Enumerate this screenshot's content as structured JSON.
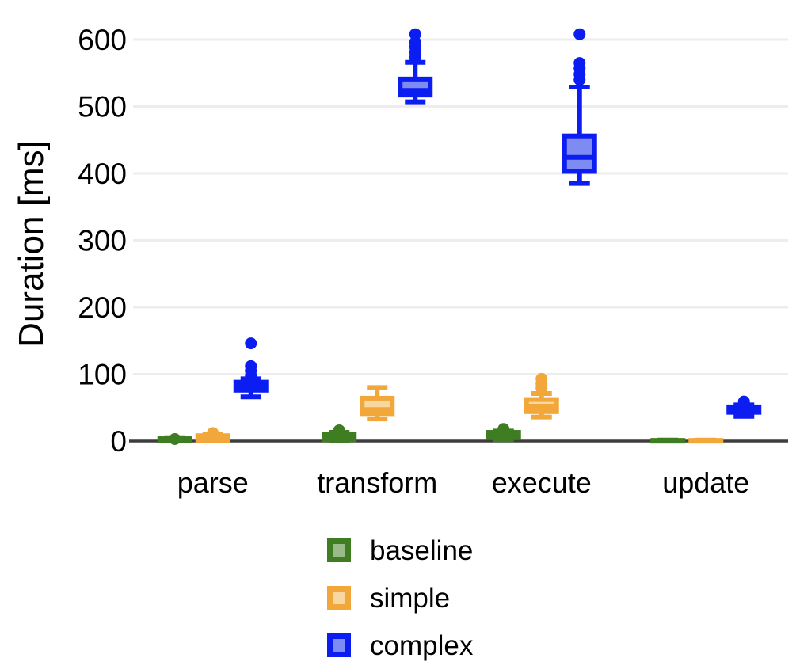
{
  "chart_data": {
    "type": "boxplot",
    "title": "",
    "ylabel": "Duration [ms]",
    "xlabel": "",
    "categories": [
      "parse",
      "transform",
      "execute",
      "update"
    ],
    "yticks": [
      0,
      100,
      200,
      300,
      400,
      500,
      600
    ],
    "ylim": [
      0,
      635
    ],
    "grid": "horizontal",
    "legend_position": "bottom",
    "axis_color": "#3d3d3d",
    "grid_color": "#ededed",
    "text_color": "#000000",
    "series": [
      {
        "name": "baseline",
        "border_color": "#3f7d23",
        "fill_color": "#9aba8a",
        "boxes": [
          {
            "category": "parse",
            "whisker_low": 0,
            "q1": 0.5,
            "median": 2,
            "q3": 3.5,
            "whisker_high": 5,
            "outliers": [
              3
            ]
          },
          {
            "category": "transform",
            "whisker_low": 0,
            "q1": 2,
            "median": 6,
            "q3": 10,
            "whisker_high": 13,
            "outliers": [
              16
            ]
          },
          {
            "category": "execute",
            "whisker_low": 2,
            "q1": 5,
            "median": 9,
            "q3": 13,
            "whisker_high": 15,
            "outliers": [
              18
            ]
          },
          {
            "category": "update",
            "whisker_low": 0,
            "q1": 0,
            "median": 0.5,
            "q3": 1,
            "whisker_high": 1.5,
            "outliers": []
          }
        ]
      },
      {
        "name": "simple",
        "border_color": "#f2a73b",
        "fill_color": "#f8d7a0",
        "boxes": [
          {
            "category": "parse",
            "whisker_low": 0,
            "q1": 1,
            "median": 4,
            "q3": 8,
            "whisker_high": 10,
            "outliers": [
              12
            ]
          },
          {
            "category": "transform",
            "whisker_low": 33,
            "q1": 41,
            "median": 47,
            "q3": 64,
            "whisker_high": 80,
            "outliers": []
          },
          {
            "category": "execute",
            "whisker_low": 36,
            "q1": 44,
            "median": 52,
            "q3": 62,
            "whisker_high": 71,
            "outliers": [
              79,
              86,
              93
            ]
          },
          {
            "category": "update",
            "whisker_low": 0,
            "q1": 0,
            "median": 0.5,
            "q3": 1,
            "whisker_high": 1.5,
            "outliers": []
          }
        ]
      },
      {
        "name": "complex",
        "border_color": "#0b1df0",
        "fill_color": "#7e8bf2",
        "boxes": [
          {
            "category": "parse",
            "whisker_low": 66,
            "q1": 76,
            "median": 82,
            "q3": 88,
            "whisker_high": 93,
            "outliers": [
              98,
              105,
              112,
              146
            ]
          },
          {
            "category": "transform",
            "whisker_low": 507,
            "q1": 517,
            "median": 524,
            "q3": 541,
            "whisker_high": 566,
            "outliers": [
              573,
              581,
              589,
              596,
              608
            ]
          },
          {
            "category": "execute",
            "whisker_low": 385,
            "q1": 403,
            "median": 424,
            "q3": 456,
            "whisker_high": 529,
            "outliers": [
              540,
              548,
              557,
              565,
              608
            ]
          },
          {
            "category": "update",
            "whisker_low": 37,
            "q1": 43,
            "median": 47,
            "q3": 51,
            "whisker_high": 54,
            "outliers": [
              59
            ]
          }
        ]
      }
    ]
  }
}
